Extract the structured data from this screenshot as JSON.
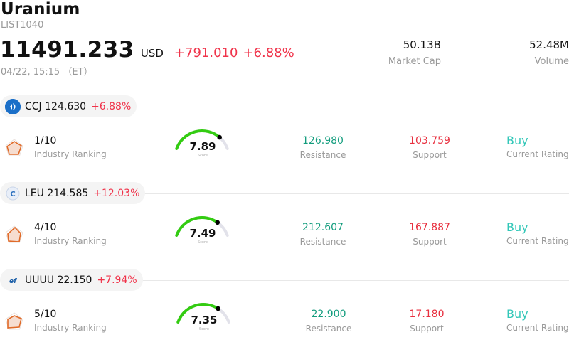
{
  "header": {
    "title": "Uranium",
    "code": "LIST1040",
    "price": "11491.233",
    "currency": "USD",
    "change": "+791.010",
    "change_pct": "+6.88%",
    "time": "04/22, 15:15 （ET）"
  },
  "stats": {
    "market_cap": {
      "value": "50.13B",
      "label": "Market Cap"
    },
    "volume": {
      "value": "52.48M",
      "label": "Volume"
    }
  },
  "labels": {
    "industry_ranking": "Industry Ranking",
    "score": "Score",
    "resistance": "Resistance",
    "support": "Support",
    "current_rating": "Current Rating"
  },
  "colors": {
    "up_red": "#f0334a",
    "resistance_green": "#149d7e",
    "rating_teal": "#32c7b8",
    "gauge_green": "#33cc11",
    "gauge_track": "#e2e2ea"
  },
  "stocks": [
    {
      "ticker": "CCJ",
      "price": "124.630",
      "change_pct": "+6.88%",
      "logo_icon": "ccj-logo-icon",
      "rank": "1/10",
      "score": "7.89",
      "score_fraction": 0.789,
      "resistance": "126.980",
      "support": "103.759",
      "rating": "Buy"
    },
    {
      "ticker": "LEU",
      "price": "214.585",
      "change_pct": "+12.03%",
      "logo_icon": "leu-logo-icon",
      "rank": "4/10",
      "score": "7.49",
      "score_fraction": 0.749,
      "resistance": "212.607",
      "support": "167.887",
      "rating": "Buy"
    },
    {
      "ticker": "UUUU",
      "price": "22.150",
      "change_pct": "+7.94%",
      "logo_icon": "uuuu-logo-icon",
      "rank": "5/10",
      "score": "7.35",
      "score_fraction": 0.735,
      "resistance": "22.900",
      "support": "17.180",
      "rating": "Buy"
    }
  ]
}
